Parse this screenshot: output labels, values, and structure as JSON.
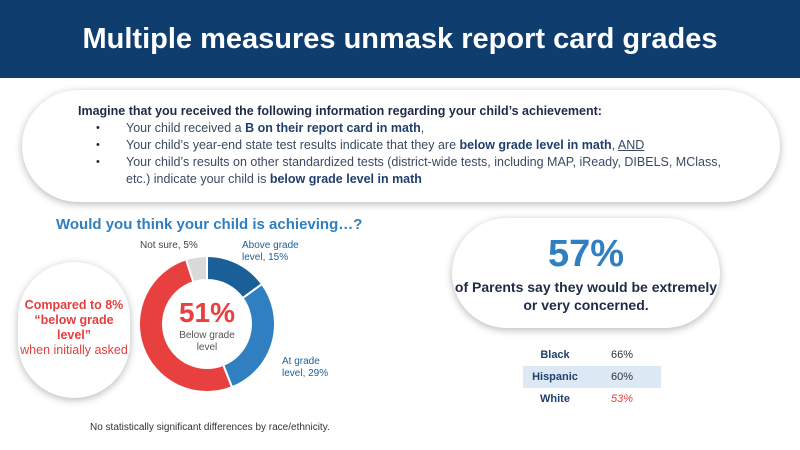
{
  "header": {
    "title": "Multiple measures unmask report card grades"
  },
  "scenario": {
    "intro": "Imagine that you received the following  information regarding your child’s achievement:",
    "items": [
      {
        "pre": "Your child received a ",
        "bold": "B on their report card in math",
        "post": ",",
        "underline": ""
      },
      {
        "pre": "Your child’s year-end state test results indicate that they are ",
        "bold": "below grade level in math",
        "post": ", ",
        "underline": "AND"
      },
      {
        "pre": "Your child’s results on other standardized tests (district-wide tests, including MAP, iReady, DIBELS, MClass, etc.) indicate your child is ",
        "bold": "below grade level in math",
        "post": "",
        "underline": ""
      }
    ]
  },
  "question": "Would you think your child is achieving…?",
  "compare": {
    "line1": "Compared to 8% “below grade level”",
    "line2": "when initially asked"
  },
  "chart_data": {
    "type": "pie",
    "variant": "donut",
    "center_value": "51%",
    "center_label": "Below grade level",
    "slices": [
      {
        "label": "Above grade level",
        "value": 15,
        "display": "Above grade level, 15%",
        "color": "#1b5f99"
      },
      {
        "label": "At grade level",
        "value": 29,
        "display": "At grade level, 29%",
        "color": "#2f7fc1"
      },
      {
        "label": "Below grade level",
        "value": 51,
        "display": "",
        "color": "#e8403f"
      },
      {
        "label": "Not sure",
        "value": 5,
        "display": "Not sure, 5%",
        "color": "#d9d9d9"
      }
    ]
  },
  "stat": {
    "value": "57%",
    "text": "of Parents say they would be extremely or very concerned."
  },
  "race_table": [
    {
      "label": "Black",
      "value": "66%"
    },
    {
      "label": "Hispanic",
      "value": "60%"
    },
    {
      "label": "White",
      "value": "53%"
    }
  ],
  "footnote": "No statistically significant differences by race/ethnicity."
}
